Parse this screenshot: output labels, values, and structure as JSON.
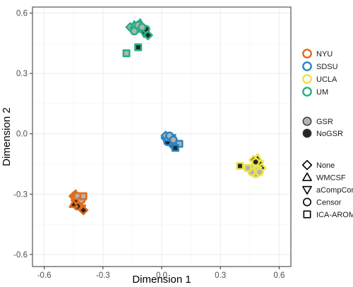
{
  "chart_data": {
    "type": "scatter",
    "title": "",
    "xlabel": "Dimension 1",
    "ylabel": "Dimension 2",
    "xlim": [
      -0.66,
      0.66
    ],
    "ylim": [
      -0.66,
      0.63
    ],
    "xticks": [
      -0.6,
      -0.3,
      0.0,
      0.3,
      0.6
    ],
    "yticks": [
      -0.6,
      -0.3,
      0.0,
      0.3,
      0.6
    ],
    "xtick_labels": [
      "-0.6",
      "-0.3",
      "0.0",
      "0.3",
      "0.6"
    ],
    "ytick_labels": [
      "-0.6",
      "-0.3",
      "0.0",
      "0.3",
      "0.6"
    ],
    "grid": true,
    "colors": {
      "NYU": "#E06C1E",
      "SDSU": "#2A86C4",
      "UCLA": "#ECE24A",
      "UM": "#2AAE85",
      "GSR": "#b3b3b3",
      "NoGSR": "#262626"
    },
    "legend": {
      "site": {
        "title": "",
        "items": [
          {
            "label": "NYU",
            "key": "NYU"
          },
          {
            "label": "SDSU",
            "key": "SDSU"
          },
          {
            "label": "UCLA",
            "key": "UCLA"
          },
          {
            "label": "UM",
            "key": "UM"
          }
        ]
      },
      "gsr": {
        "title": "",
        "items": [
          {
            "label": "GSR",
            "key": "GSR"
          },
          {
            "label": "NoGSR",
            "key": "NoGSR"
          }
        ]
      },
      "pipeline": {
        "title": "",
        "items": [
          {
            "label": "None",
            "shape": "diamond"
          },
          {
            "label": "WMCSF",
            "shape": "triangle-up"
          },
          {
            "label": "aCompCor",
            "shape": "triangle-down"
          },
          {
            "label": "Censor",
            "shape": "circle"
          },
          {
            "label": "ICA-AROMA",
            "shape": "square"
          }
        ]
      }
    },
    "points": [
      {
        "site": "UM",
        "gsr": "NoGSR",
        "shape": "diamond",
        "x": -0.12,
        "y": 0.54
      },
      {
        "site": "UM",
        "gsr": "NoGSR",
        "shape": "triangle-up",
        "x": -0.1,
        "y": 0.52
      },
      {
        "site": "UM",
        "gsr": "NoGSR",
        "shape": "triangle-down",
        "x": -0.09,
        "y": 0.5
      },
      {
        "site": "UM",
        "gsr": "NoGSR",
        "shape": "circle",
        "x": -0.08,
        "y": 0.52
      },
      {
        "site": "UM",
        "gsr": "NoGSR",
        "shape": "diamond",
        "x": -0.07,
        "y": 0.49
      },
      {
        "site": "UM",
        "gsr": "NoGSR",
        "shape": "triangle-up",
        "x": -0.11,
        "y": 0.55
      },
      {
        "site": "UM",
        "gsr": "GSR",
        "shape": "diamond",
        "x": -0.16,
        "y": 0.53
      },
      {
        "site": "UM",
        "gsr": "GSR",
        "shape": "triangle-up",
        "x": -0.14,
        "y": 0.54
      },
      {
        "site": "UM",
        "gsr": "GSR",
        "shape": "triangle-down",
        "x": -0.13,
        "y": 0.52
      },
      {
        "site": "UM",
        "gsr": "GSR",
        "shape": "circle",
        "x": -0.12,
        "y": 0.54
      },
      {
        "site": "UM",
        "gsr": "GSR",
        "shape": "circle",
        "x": -0.1,
        "y": 0.53
      },
      {
        "site": "UM",
        "gsr": "GSR",
        "shape": "circle",
        "x": -0.14,
        "y": 0.51
      },
      {
        "site": "UM",
        "gsr": "GSR",
        "shape": "square",
        "x": -0.18,
        "y": 0.4
      },
      {
        "site": "UM",
        "gsr": "NoGSR",
        "shape": "square",
        "x": -0.12,
        "y": 0.43
      },
      {
        "site": "SDSU",
        "gsr": "NoGSR",
        "shape": "diamond",
        "x": 0.02,
        "y": -0.02
      },
      {
        "site": "SDSU",
        "gsr": "NoGSR",
        "shape": "triangle-up",
        "x": 0.04,
        "y": -0.03
      },
      {
        "site": "SDSU",
        "gsr": "NoGSR",
        "shape": "triangle-down",
        "x": 0.05,
        "y": -0.05
      },
      {
        "site": "SDSU",
        "gsr": "NoGSR",
        "shape": "circle",
        "x": 0.03,
        "y": -0.04
      },
      {
        "site": "SDSU",
        "gsr": "NoGSR",
        "shape": "diamond",
        "x": 0.06,
        "y": -0.06
      },
      {
        "site": "SDSU",
        "gsr": "GSR",
        "shape": "diamond",
        "x": 0.02,
        "y": -0.01
      },
      {
        "site": "SDSU",
        "gsr": "GSR",
        "shape": "triangle-up",
        "x": 0.03,
        "y": -0.02
      },
      {
        "site": "SDSU",
        "gsr": "GSR",
        "shape": "triangle-down",
        "x": 0.05,
        "y": -0.02
      },
      {
        "site": "SDSU",
        "gsr": "GSR",
        "shape": "circle",
        "x": 0.04,
        "y": -0.01
      },
      {
        "site": "SDSU",
        "gsr": "GSR",
        "shape": "circle",
        "x": 0.06,
        "y": -0.03
      },
      {
        "site": "SDSU",
        "gsr": "GSR",
        "shape": "square",
        "x": 0.09,
        "y": -0.05
      },
      {
        "site": "SDSU",
        "gsr": "NoGSR",
        "shape": "square",
        "x": 0.07,
        "y": -0.07
      },
      {
        "site": "UCLA",
        "gsr": "NoGSR",
        "shape": "diamond",
        "x": 0.47,
        "y": -0.13
      },
      {
        "site": "UCLA",
        "gsr": "NoGSR",
        "shape": "triangle-up",
        "x": 0.49,
        "y": -0.12
      },
      {
        "site": "UCLA",
        "gsr": "NoGSR",
        "shape": "triangle-down",
        "x": 0.5,
        "y": -0.15
      },
      {
        "site": "UCLA",
        "gsr": "NoGSR",
        "shape": "circle",
        "x": 0.48,
        "y": -0.14
      },
      {
        "site": "UCLA",
        "gsr": "NoGSR",
        "shape": "diamond",
        "x": 0.51,
        "y": -0.17
      },
      {
        "site": "UCLA",
        "gsr": "GSR",
        "shape": "diamond",
        "x": 0.46,
        "y": -0.17
      },
      {
        "site": "UCLA",
        "gsr": "GSR",
        "shape": "triangle-up",
        "x": 0.47,
        "y": -0.19
      },
      {
        "site": "UCLA",
        "gsr": "GSR",
        "shape": "triangle-down",
        "x": 0.49,
        "y": -0.18
      },
      {
        "site": "UCLA",
        "gsr": "GSR",
        "shape": "circle",
        "x": 0.48,
        "y": -0.2
      },
      {
        "site": "UCLA",
        "gsr": "GSR",
        "shape": "circle",
        "x": 0.5,
        "y": -0.19
      },
      {
        "site": "UCLA",
        "gsr": "GSR",
        "shape": "circle",
        "x": 0.46,
        "y": -0.19
      },
      {
        "site": "UCLA",
        "gsr": "GSR",
        "shape": "square",
        "x": 0.44,
        "y": -0.17
      },
      {
        "site": "UCLA",
        "gsr": "NoGSR",
        "shape": "square",
        "x": 0.4,
        "y": -0.16
      },
      {
        "site": "NYU",
        "gsr": "NoGSR",
        "shape": "diamond",
        "x": -0.44,
        "y": -0.33
      },
      {
        "site": "NYU",
        "gsr": "NoGSR",
        "shape": "triangle-up",
        "x": -0.42,
        "y": -0.35
      },
      {
        "site": "NYU",
        "gsr": "NoGSR",
        "shape": "triangle-down",
        "x": -0.41,
        "y": -0.37
      },
      {
        "site": "NYU",
        "gsr": "NoGSR",
        "shape": "circle",
        "x": -0.43,
        "y": -0.36
      },
      {
        "site": "NYU",
        "gsr": "NoGSR",
        "shape": "diamond",
        "x": -0.4,
        "y": -0.38
      },
      {
        "site": "NYU",
        "gsr": "NoGSR",
        "shape": "triangle-up",
        "x": -0.45,
        "y": -0.35
      },
      {
        "site": "NYU",
        "gsr": "GSR",
        "shape": "diamond",
        "x": -0.45,
        "y": -0.31
      },
      {
        "site": "NYU",
        "gsr": "GSR",
        "shape": "triangle-up",
        "x": -0.44,
        "y": -0.3
      },
      {
        "site": "NYU",
        "gsr": "GSR",
        "shape": "triangle-down",
        "x": -0.42,
        "y": -0.32
      },
      {
        "site": "NYU",
        "gsr": "GSR",
        "shape": "circle",
        "x": -0.43,
        "y": -0.31
      },
      {
        "site": "NYU",
        "gsr": "GSR",
        "shape": "circle",
        "x": -0.41,
        "y": -0.33
      },
      {
        "site": "NYU",
        "gsr": "GSR",
        "shape": "square",
        "x": -0.4,
        "y": -0.31
      }
    ]
  }
}
